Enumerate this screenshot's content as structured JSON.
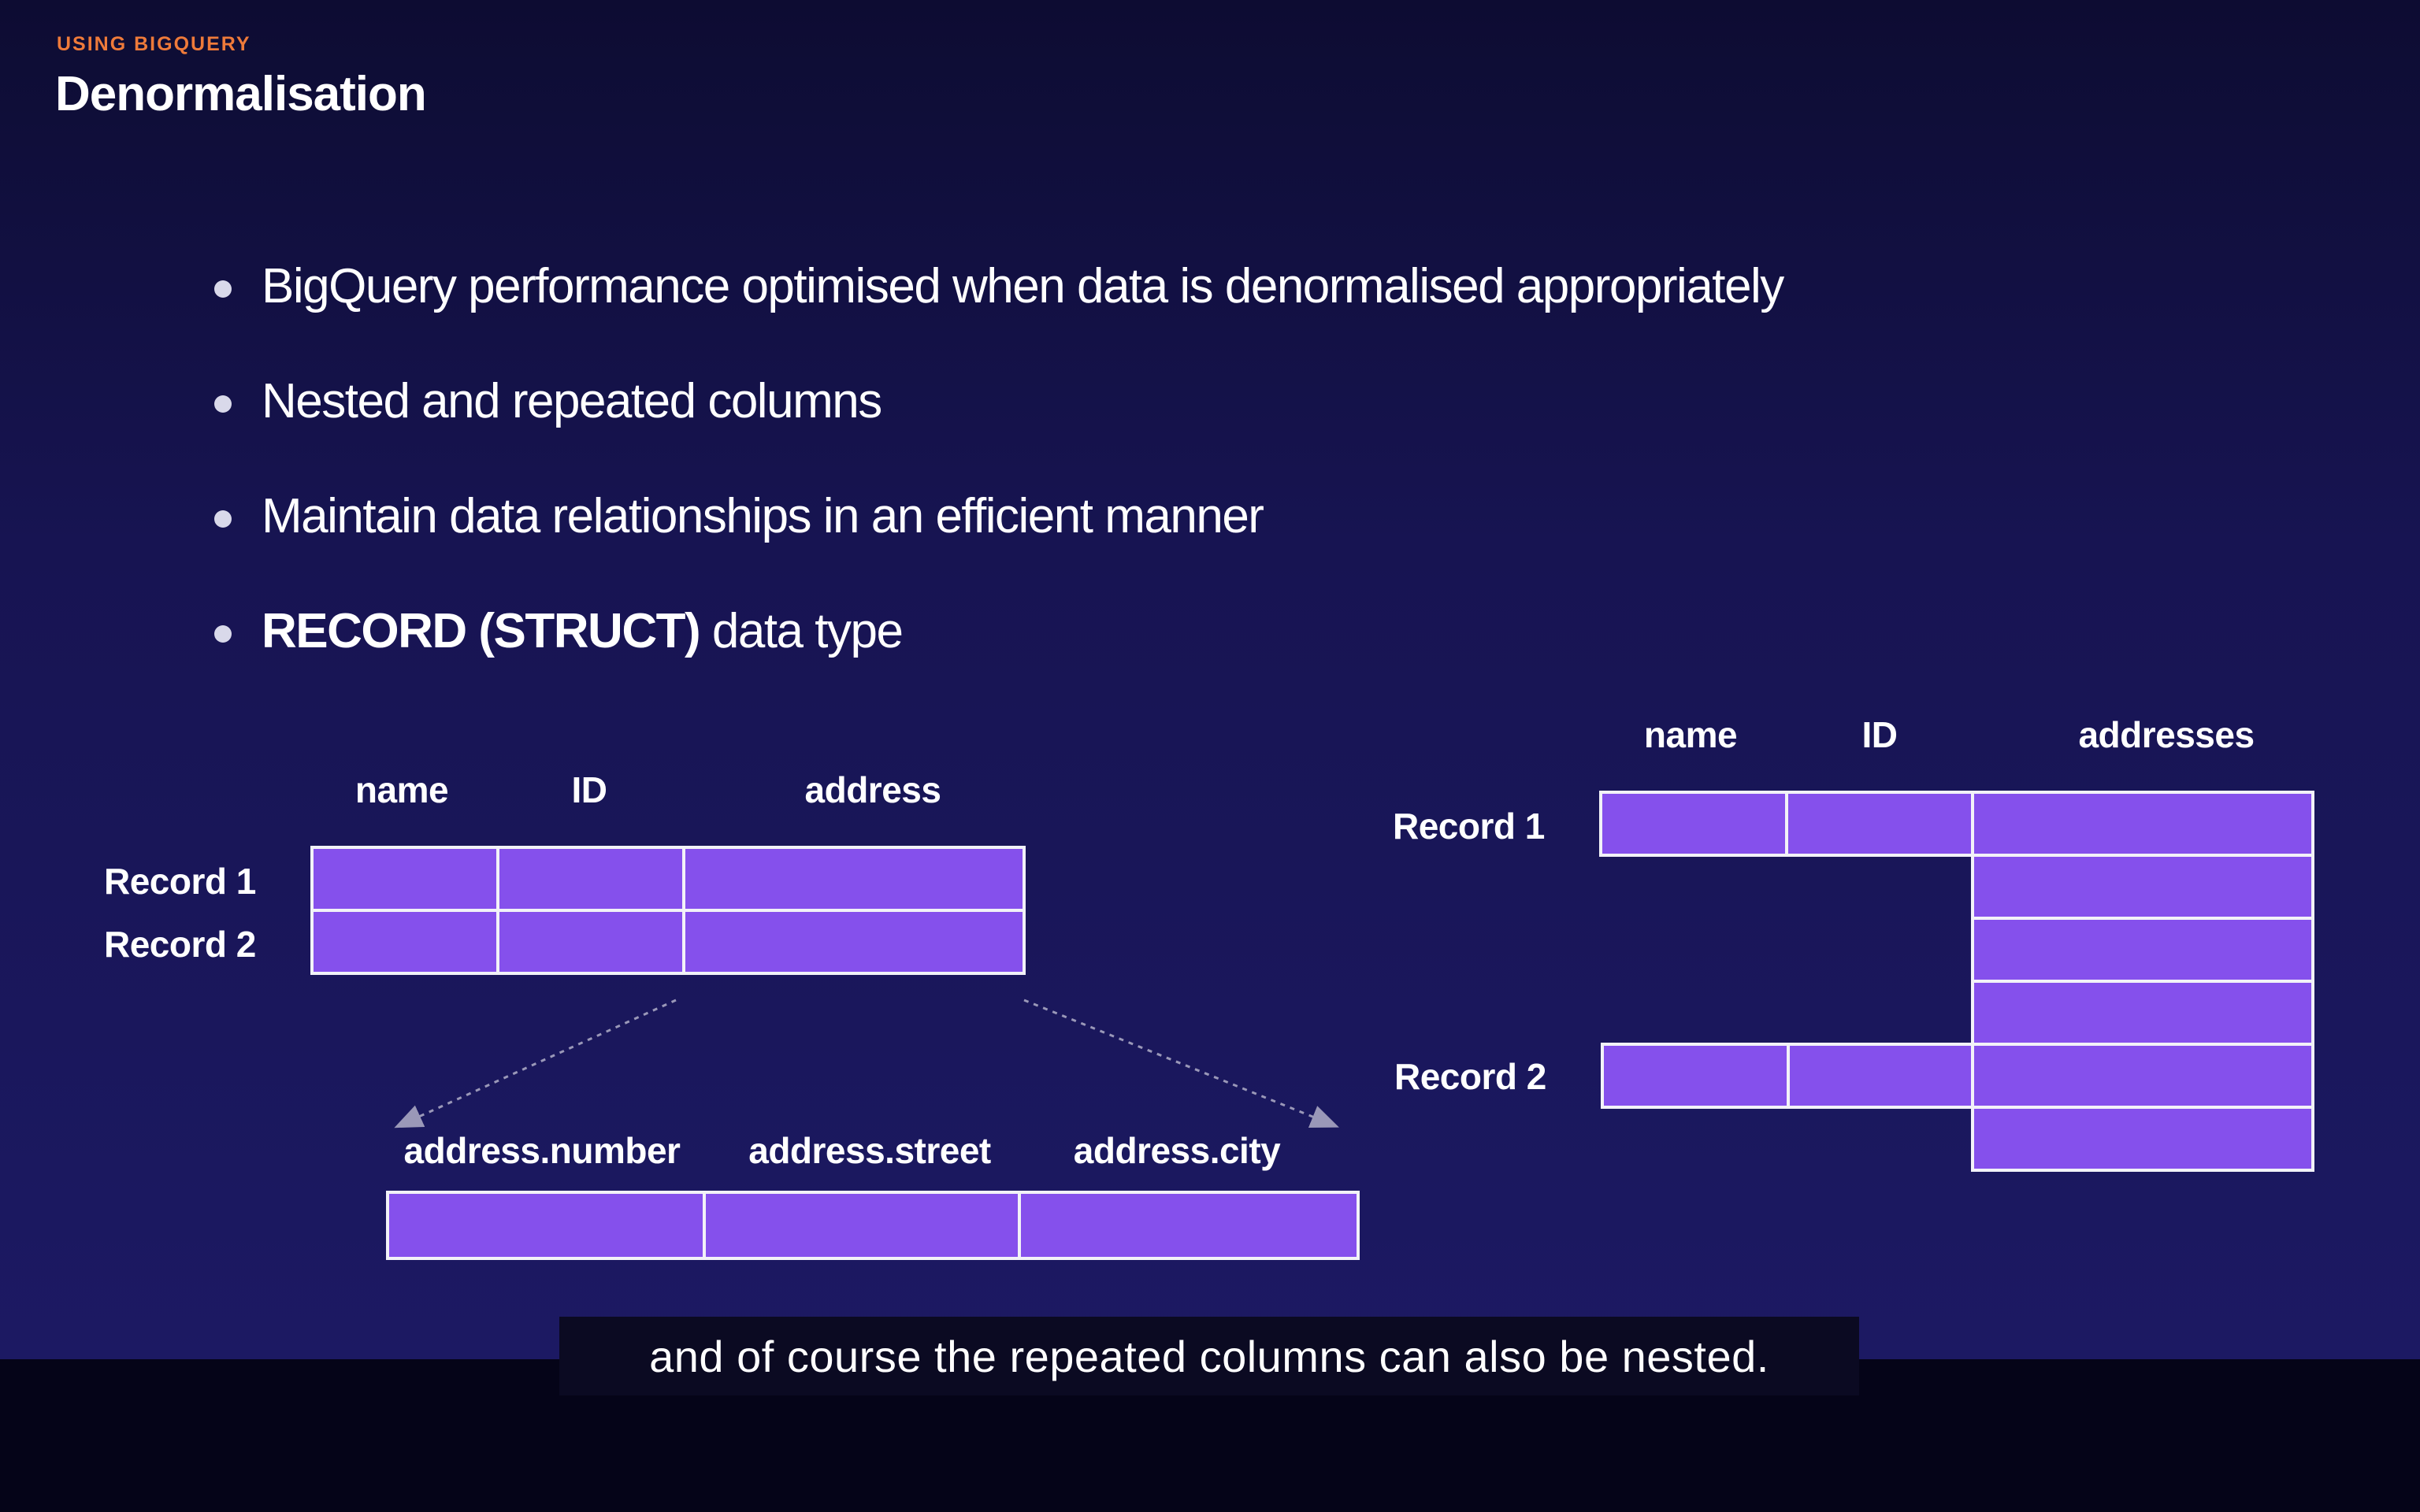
{
  "slide": {
    "eyebrow": "USING BIGQUERY",
    "title": "Denormalisation",
    "bullets": [
      {
        "text": "BigQuery performance optimised when data is denormalised appropriately"
      },
      {
        "text": "Nested and repeated columns"
      },
      {
        "text": "Maintain data relationships in an efficient manner"
      },
      {
        "bold": "RECORD (STRUCT)",
        "text": " data type"
      }
    ]
  },
  "struct_table": {
    "columns": [
      "name",
      "ID",
      "address"
    ],
    "rows": [
      "Record 1",
      "Record 2"
    ],
    "nested_columns": [
      "address.number",
      "address.street",
      "address.city"
    ]
  },
  "repeated_table": {
    "columns": [
      "name",
      "ID",
      "addresses"
    ],
    "rows": [
      "Record 1",
      "Record 2"
    ]
  },
  "caption": {
    "text": "and of course the repeated columns can also be nested."
  },
  "colors": {
    "cell_fill": "#8550ec",
    "cell_border": "#f2f2f8",
    "eyebrow": "#ee7a3a",
    "background": "#171452"
  }
}
